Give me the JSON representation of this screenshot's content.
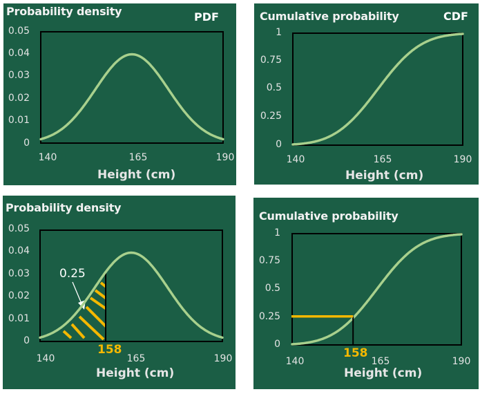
{
  "colors": {
    "background": "#1b5e45",
    "curve": "#a8d08d",
    "highlight": "#f5b800",
    "frame": "#000000"
  },
  "chart_data": [
    {
      "type": "line",
      "name": "pdf",
      "title": "Probability density",
      "tag": "PDF",
      "xlabel": "Height (cm)",
      "xlim": [
        140,
        190
      ],
      "ylim": [
        0,
        0.05
      ],
      "x_ticks": [
        "140",
        "165",
        "190"
      ],
      "y_ticks": [
        "0.05",
        "0.04",
        "0.03",
        "0.02",
        "0.01",
        "0"
      ],
      "distribution": {
        "mean": 165,
        "sd": 10
      },
      "x": [
        140,
        145,
        150,
        155,
        160,
        165,
        170,
        175,
        180,
        185,
        190
      ],
      "y": [
        0.0018,
        0.0054,
        0.013,
        0.0242,
        0.0352,
        0.0399,
        0.0352,
        0.0242,
        0.013,
        0.0054,
        0.0018
      ]
    },
    {
      "type": "line",
      "name": "cdf",
      "title": "Cumulative probability",
      "tag": "CDF",
      "xlabel": "Height (cm)",
      "xlim": [
        140,
        190
      ],
      "ylim": [
        0,
        1
      ],
      "x_ticks": [
        "140",
        "165",
        "190"
      ],
      "y_ticks": [
        "1",
        "0.75",
        "0.5",
        "0.25",
        "0"
      ],
      "distribution": {
        "mean": 165,
        "sd": 10
      },
      "x": [
        140,
        145,
        150,
        155,
        160,
        165,
        170,
        175,
        180,
        185,
        190
      ],
      "y": [
        0.006,
        0.023,
        0.067,
        0.159,
        0.309,
        0.5,
        0.691,
        0.841,
        0.933,
        0.977,
        0.994
      ]
    },
    {
      "type": "area",
      "name": "pdf-shaded",
      "title": "Probability density",
      "xlabel": "Height (cm)",
      "xlim": [
        140,
        190
      ],
      "ylim": [
        0,
        0.05
      ],
      "x_ticks": [
        "140",
        "165",
        "190"
      ],
      "y_ticks": [
        "0.05",
        "0.04",
        "0.03",
        "0.02",
        "0.01",
        "0"
      ],
      "distribution": {
        "mean": 165,
        "sd": 10
      },
      "marker_x": 158,
      "marker_label": "158",
      "area_label": "0.25"
    },
    {
      "type": "line",
      "name": "cdf-marked",
      "title": "Cumulative probability",
      "xlabel": "Height (cm)",
      "xlim": [
        140,
        190
      ],
      "ylim": [
        0,
        1
      ],
      "x_ticks": [
        "140",
        "165",
        "190"
      ],
      "y_ticks": [
        "1",
        "0.75",
        "0.5",
        "0.25",
        "0"
      ],
      "distribution": {
        "mean": 165,
        "sd": 10
      },
      "marker_x": 158,
      "marker_y": 0.25,
      "marker_label": "158"
    }
  ]
}
